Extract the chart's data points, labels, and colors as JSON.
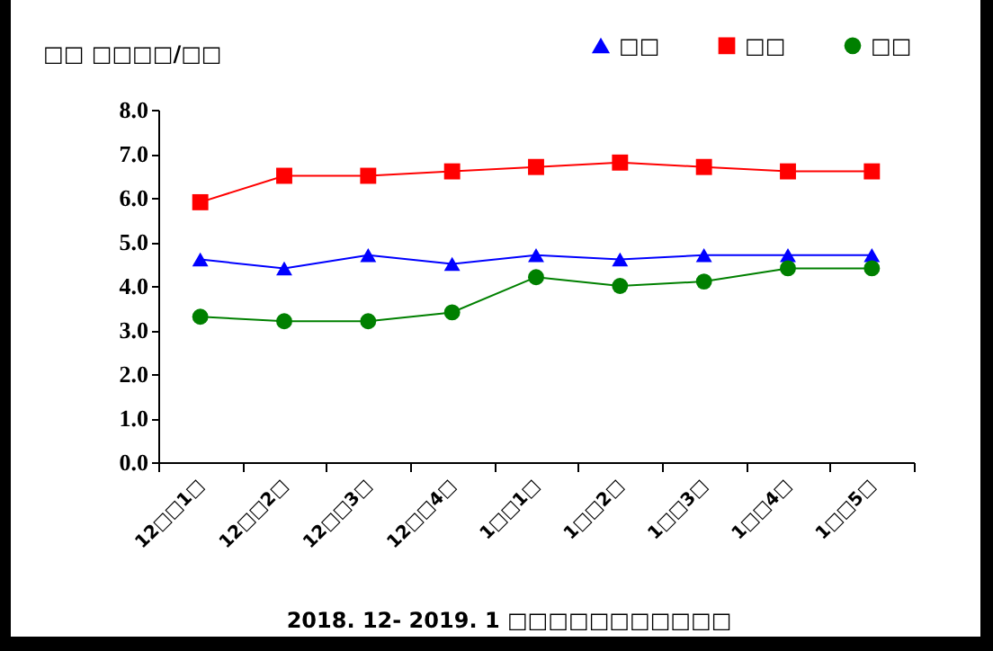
{
  "chart_data": {
    "type": "line",
    "title": "□□ □□□□/□□",
    "categories": [
      "12□□1□",
      "12□□2□",
      "12□□3□",
      "12□□4□",
      "1□□1□",
      "1□□2□",
      "1□□3□",
      "1□□4□",
      "1□□5□"
    ],
    "series": [
      {
        "name": "□□",
        "color": "#0000ff",
        "marker": "triangle",
        "values": [
          4.6,
          4.4,
          4.7,
          4.5,
          4.7,
          4.6,
          4.7,
          4.7,
          4.7
        ]
      },
      {
        "name": "□□",
        "color": "#ff0000",
        "marker": "square",
        "values": [
          5.9,
          6.5,
          6.5,
          6.6,
          6.7,
          6.8,
          6.7,
          6.6,
          6.6
        ]
      },
      {
        "name": "□□",
        "color": "#008000",
        "marker": "circle",
        "values": [
          3.3,
          3.2,
          3.2,
          3.4,
          4.2,
          4.0,
          4.1,
          4.4,
          4.4
        ]
      }
    ],
    "ylim": [
      0,
      8
    ],
    "yticks": [
      {
        "value": 0,
        "label": "0.0"
      },
      {
        "value": 1,
        "label": "1.0"
      },
      {
        "value": 2,
        "label": "2.0"
      },
      {
        "value": 3,
        "label": "3.0"
      },
      {
        "value": 4,
        "label": "4.0"
      },
      {
        "value": 5,
        "label": "5.0"
      },
      {
        "value": 6,
        "label": "6.0"
      },
      {
        "value": 7,
        "label": "7.0"
      },
      {
        "value": 8,
        "label": "8.0"
      }
    ],
    "grid": false,
    "legend": "top right",
    "annotations": [
      "2018. 12- 2019. 1 □□□□□□□□□□□"
    ]
  }
}
